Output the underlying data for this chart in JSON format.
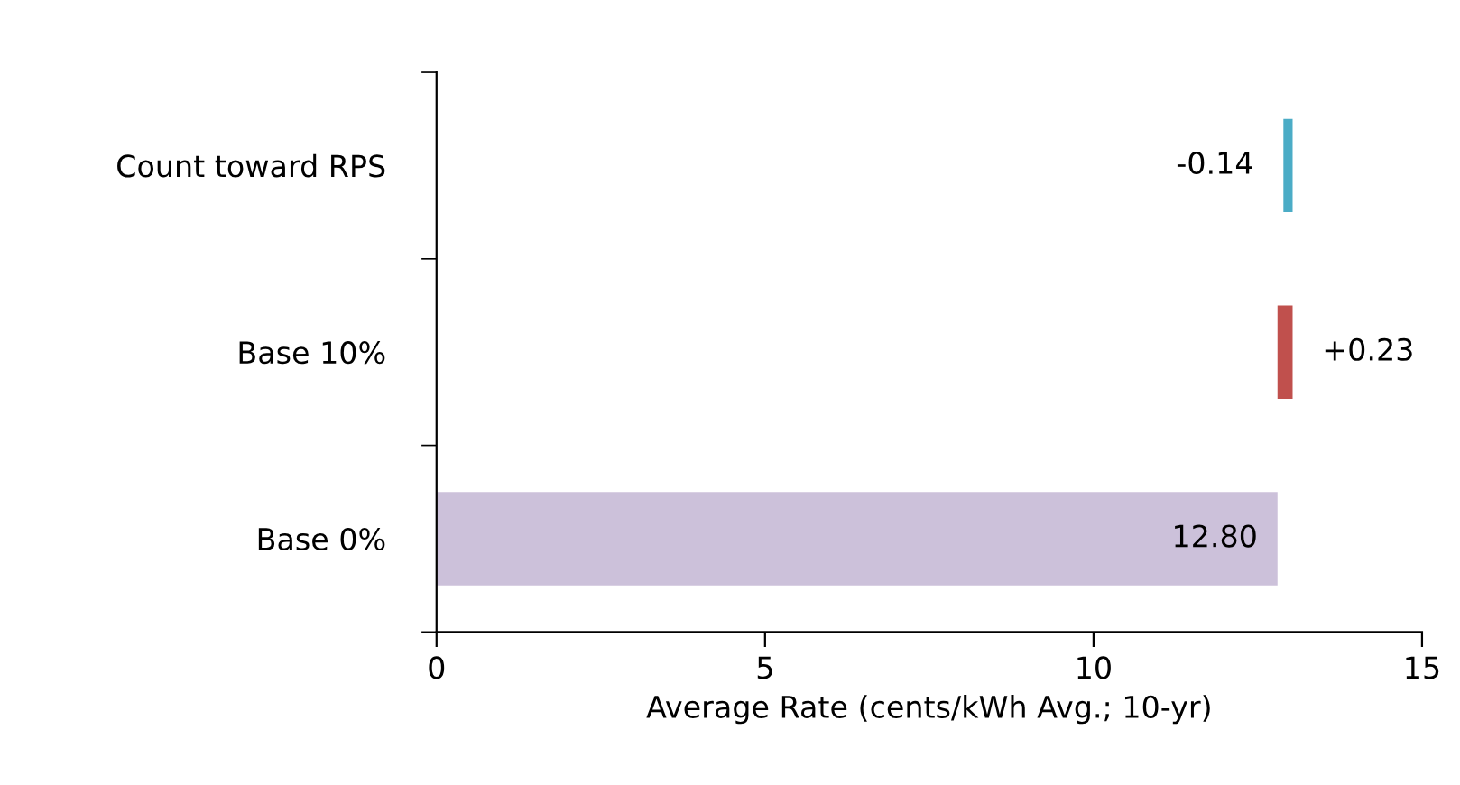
{
  "chart_data": {
    "type": "bar",
    "orientation": "horizontal",
    "xlabel": "Average Rate (cents/kWh Avg.; 10-yr)",
    "categories": [
      "Count toward RPS",
      "Base 10%",
      "Base 0%"
    ],
    "values": [
      -0.14,
      0.23,
      12.8
    ],
    "base": [
      13.03,
      12.8,
      0
    ],
    "colors": [
      "#4bacc6",
      "#c0504d",
      "#ccc1da"
    ],
    "value_labels": [
      "-0.14",
      "+0.23",
      "12.80"
    ],
    "xlim": [
      0,
      15
    ],
    "xticks": [
      0,
      5,
      10,
      15
    ],
    "grid": false,
    "legend": false
  }
}
